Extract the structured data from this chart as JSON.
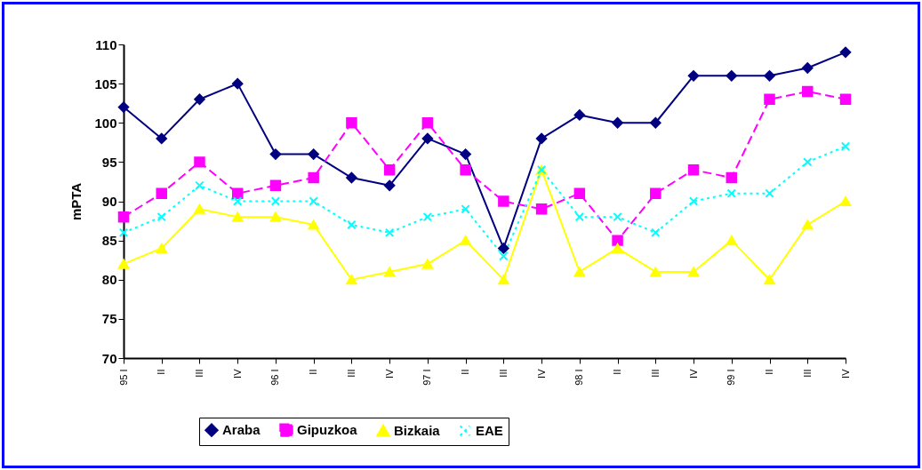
{
  "chart_data": {
    "type": "line",
    "ylabel": "mPTA",
    "ylim": [
      70,
      110
    ],
    "yticks": [
      70,
      75,
      80,
      85,
      90,
      95,
      100,
      105,
      110
    ],
    "grid": false,
    "legend": "bottom",
    "categories": [
      "95 I",
      "II",
      "III",
      "IV",
      "96 I",
      "II",
      "III",
      "IV",
      "97 I",
      "II",
      "III",
      "IV",
      "98 I",
      "II",
      "III",
      "IV",
      "99 I",
      "II",
      "III",
      "IV"
    ],
    "series": [
      {
        "name": "Araba",
        "color": "#000080",
        "marker": "diamond",
        "line_style": "solid",
        "values": [
          102,
          98,
          103,
          105,
          96,
          96,
          93,
          92,
          98,
          96,
          84,
          98,
          101,
          100,
          100,
          106,
          106,
          106,
          107,
          109
        ]
      },
      {
        "name": "Gipuzkoa",
        "color": "#ff00ff",
        "marker": "square",
        "line_style": "dashed",
        "values": [
          88,
          91,
          95,
          91,
          92,
          93,
          100,
          94,
          100,
          94,
          90,
          89,
          91,
          85,
          91,
          94,
          93,
          103,
          104,
          103
        ]
      },
      {
        "name": "Bizkaia",
        "color": "#ffff00",
        "marker": "triangle",
        "line_style": "solid",
        "values": [
          82,
          84,
          89,
          88,
          88,
          87,
          80,
          81,
          82,
          85,
          80,
          94,
          81,
          84,
          81,
          81,
          85,
          80,
          87,
          90
        ]
      },
      {
        "name": "EAE",
        "color": "#00ffff",
        "marker": "cross",
        "line_style": "dotted",
        "values": [
          86,
          88,
          92,
          90,
          90,
          90,
          87,
          86,
          88,
          89,
          83,
          94,
          88,
          88,
          86,
          90,
          91,
          91,
          95,
          97
        ]
      }
    ]
  }
}
